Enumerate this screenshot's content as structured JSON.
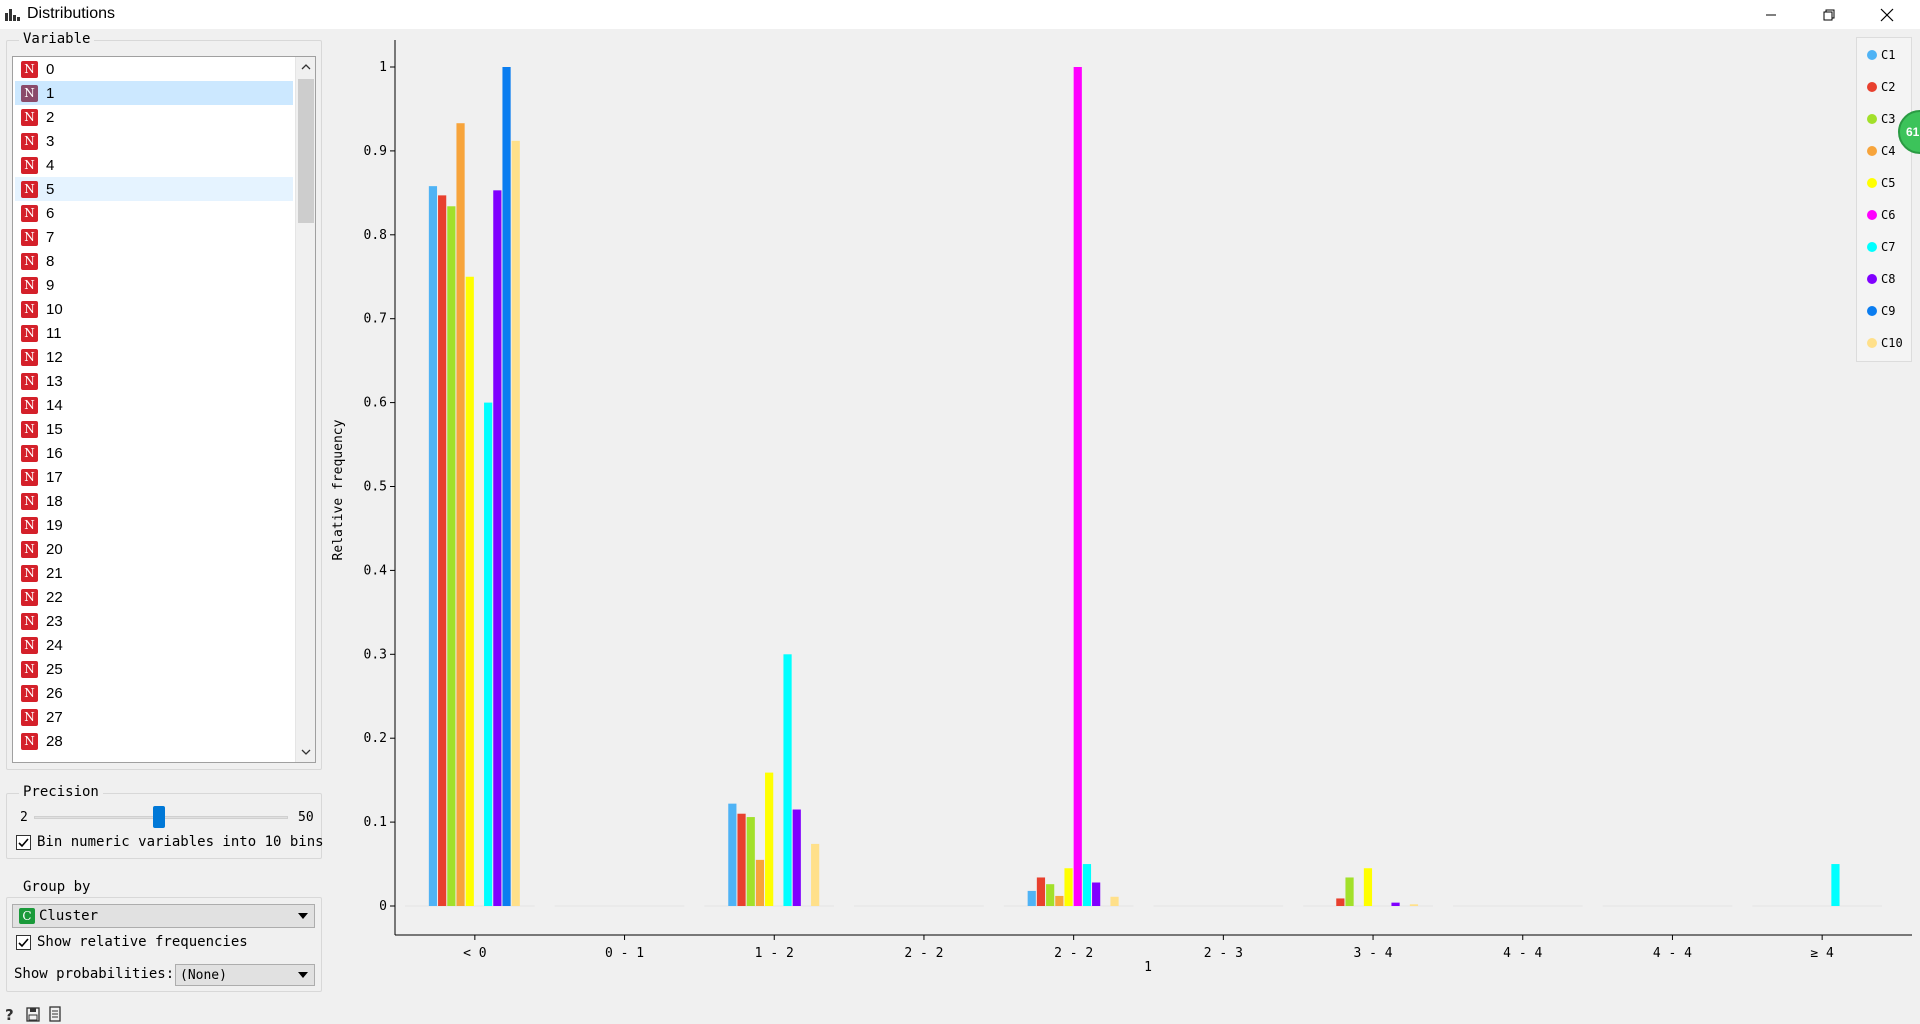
{
  "window": {
    "title": "Distributions"
  },
  "variable_box": {
    "title": "Variable",
    "items": [
      "0",
      "1",
      "2",
      "3",
      "4",
      "5",
      "6",
      "7",
      "8",
      "9",
      "10",
      "11",
      "12",
      "13",
      "14",
      "15",
      "16",
      "17",
      "18",
      "19",
      "20",
      "21",
      "22",
      "23",
      "24",
      "25",
      "26",
      "27",
      "28"
    ],
    "badge": "N",
    "selected_index": 1,
    "hovered_index": 5
  },
  "precision": {
    "title": "Precision",
    "min_label": "2",
    "max_label": "50",
    "bin_label": "Bin numeric variables into 10 bins",
    "bin_checked": true
  },
  "group_by": {
    "title": "Group by",
    "value": "Cluster",
    "badge": "C",
    "relative_label": "Show relative frequencies",
    "relative_checked": true,
    "prob_label": "Show probabilities:",
    "prob_value": "(None)"
  },
  "legend": {
    "items": [
      {
        "label": "C1",
        "color": "#4fb3f5"
      },
      {
        "label": "C2",
        "color": "#e8402e"
      },
      {
        "label": "C3",
        "color": "#a2e02a"
      },
      {
        "label": "C4",
        "color": "#f7a43b"
      },
      {
        "label": "C5",
        "color": "#ffff00"
      },
      {
        "label": "C6",
        "color": "#ff00ff"
      },
      {
        "label": "C7",
        "color": "#00ffff"
      },
      {
        "label": "C8",
        "color": "#8000ff"
      },
      {
        "label": "C9",
        "color": "#0a7df0"
      },
      {
        "label": "C10",
        "color": "#ffe08a"
      }
    ]
  },
  "badge_bubble": "61",
  "chart_data": {
    "type": "bar",
    "xlabel": "1",
    "ylabel": "Relative frequency",
    "ylim": [
      0,
      1
    ],
    "yticks": [
      "0",
      "0.1",
      "0.2",
      "0.3",
      "0.4",
      "0.5",
      "0.6",
      "0.7",
      "0.8",
      "0.9",
      "1"
    ],
    "categories": [
      "< 0",
      "0 - 1",
      "1 - 2",
      "2 - 2",
      "2 - 2",
      "2 - 3",
      "3 - 4",
      "4 - 4",
      "4 - 4",
      "≥ 4"
    ],
    "series": [
      {
        "name": "C1",
        "values": [
          0.858,
          0,
          0.122,
          0,
          0.018,
          0,
          0,
          0,
          0,
          0
        ]
      },
      {
        "name": "C2",
        "values": [
          0.847,
          0,
          0.11,
          0,
          0.034,
          0,
          0.009,
          0,
          0,
          0
        ]
      },
      {
        "name": "C3",
        "values": [
          0.834,
          0,
          0.106,
          0,
          0.026,
          0,
          0.034,
          0,
          0,
          0
        ]
      },
      {
        "name": "C4",
        "values": [
          0.933,
          0,
          0.055,
          0,
          0.012,
          0,
          0,
          0,
          0,
          0
        ]
      },
      {
        "name": "C5",
        "values": [
          0.75,
          0,
          0.159,
          0,
          0.045,
          0,
          0.045,
          0,
          0,
          0
        ]
      },
      {
        "name": "C6",
        "values": [
          0,
          0,
          0,
          0,
          1.0,
          0,
          0,
          0,
          0,
          0
        ]
      },
      {
        "name": "C7",
        "values": [
          0.6,
          0,
          0.3,
          0,
          0.05,
          0,
          0,
          0,
          0,
          0.05
        ]
      },
      {
        "name": "C8",
        "values": [
          0.853,
          0,
          0.115,
          0,
          0.028,
          0,
          0.004,
          0,
          0,
          0
        ]
      },
      {
        "name": "C9",
        "values": [
          1.0,
          0,
          0,
          0,
          0,
          0,
          0,
          0,
          0,
          0
        ]
      },
      {
        "name": "C10",
        "values": [
          0.912,
          0,
          0.074,
          0,
          0.011,
          0,
          0.002,
          0,
          0,
          0
        ]
      }
    ]
  }
}
